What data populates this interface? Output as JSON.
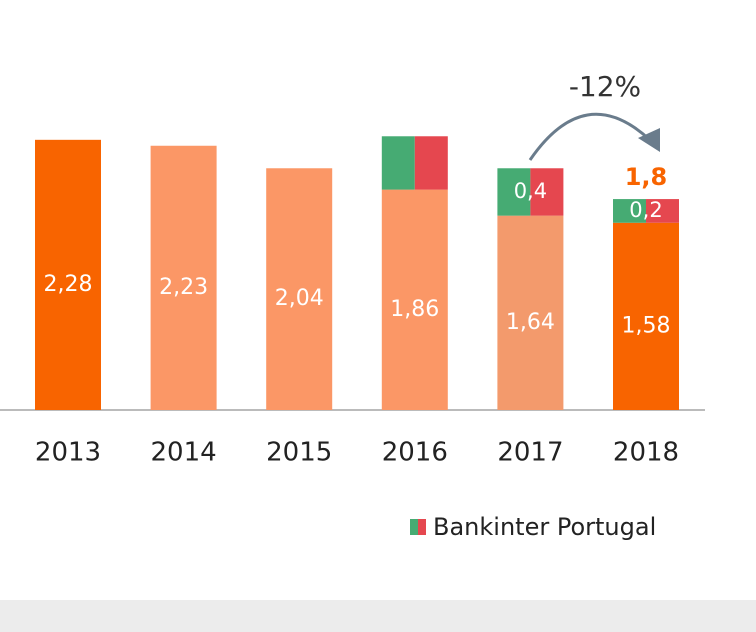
{
  "chart_data": {
    "type": "stacked_bar",
    "categories": [
      "2013",
      "2014",
      "2015",
      "2016",
      "2017",
      "2018"
    ],
    "series": [
      {
        "values": [
          2.28,
          2.23,
          2.04,
          1.86,
          1.64,
          1.58
        ],
        "value_labels": [
          "2,28",
          "2,23",
          "2,04",
          "1,86",
          "1,64",
          "1,58"
        ],
        "colors": [
          "#f86400",
          "#fb9766",
          "#fb9766",
          "#fb9766",
          "#f39a6c",
          "#f86400"
        ]
      },
      {
        "name": "Bankinter Portugal",
        "values": [
          null,
          null,
          null,
          0.45,
          0.4,
          0.2
        ],
        "value_labels": [
          null,
          null,
          null,
          null,
          "0,4",
          "0,2"
        ],
        "colors": [
          "#46ab73",
          "#e5474f"
        ]
      }
    ],
    "annotations": [
      "-12%",
      "1,8"
    ],
    "ylim": [
      0,
      3.46
    ]
  }
}
